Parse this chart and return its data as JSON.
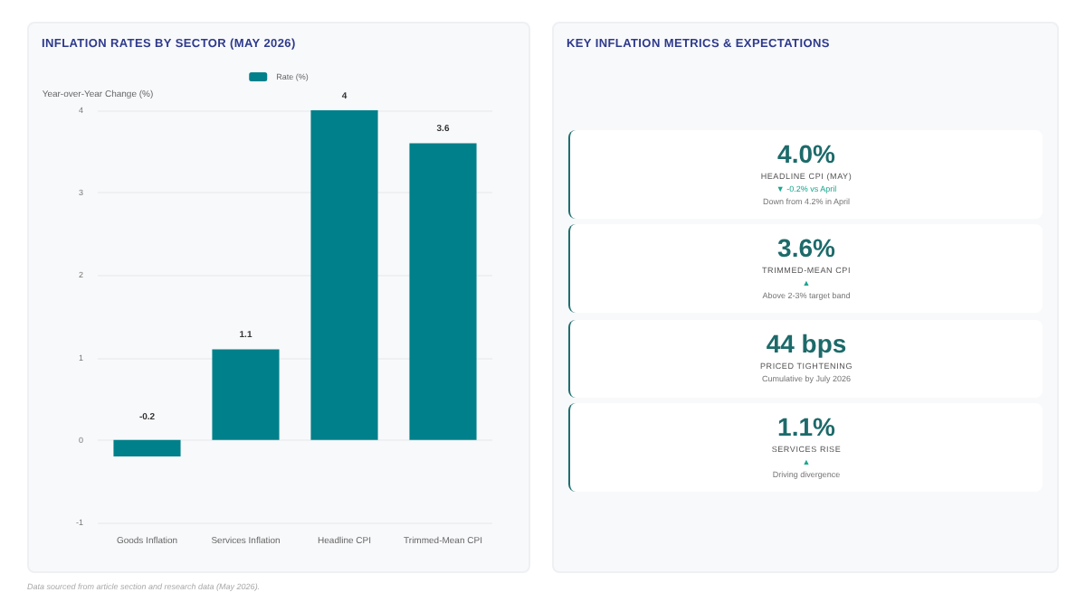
{
  "chart_data": [
    {
      "type": "bar",
      "title": "INFLATION RATES BY SECTOR (MAY 2026)",
      "ylabel": "Year-over-Year Change (%)",
      "categories": [
        "Goods Inflation",
        "Services Inflation",
        "Headline CPI",
        "Trimmed-Mean CPI"
      ],
      "series": [
        {
          "name": "Rate (%)",
          "color": "#00808a",
          "values": [
            -0.2,
            1.1,
            4,
            3.6
          ]
        }
      ],
      "ylim": [
        -1,
        4
      ],
      "yticks": [
        -1,
        0,
        1,
        2,
        3,
        4
      ],
      "grid": "y",
      "legend": "top",
      "data_labels": true,
      "annotations": [
        "Data sourced from article section and research data (May 2026)."
      ]
    },
    {
      "type": "other",
      "title": "KEY INFLATION METRICS & EXPECTATIONS",
      "categories": [
        "HEADLINE CPI (MAY)",
        "TRIMMED-MEAN CPI",
        "PRICED TIGHTENING",
        "SERVICES RISE"
      ],
      "value_labels": [
        "4.0%",
        "3.6%",
        "44 bps",
        "1.1%"
      ],
      "annotations": [
        {
          "text": "▼ -0.2% vs April",
          "x": "HEADLINE CPI (MAY)"
        },
        {
          "text": "Down from 4.2% in April",
          "x": "HEADLINE CPI (MAY)"
        },
        {
          "text": "▲",
          "x": "TRIMMED-MEAN CPI"
        },
        {
          "text": "Above 2-3% target band",
          "x": "TRIMMED-MEAN CPI"
        },
        {
          "text": "Cumulative by July 2026",
          "x": "PRICED TIGHTENING"
        },
        {
          "text": "▲",
          "x": "SERVICES RISE"
        },
        {
          "text": "Driving divergence",
          "x": "SERVICES RISE"
        }
      ]
    }
  ]
}
